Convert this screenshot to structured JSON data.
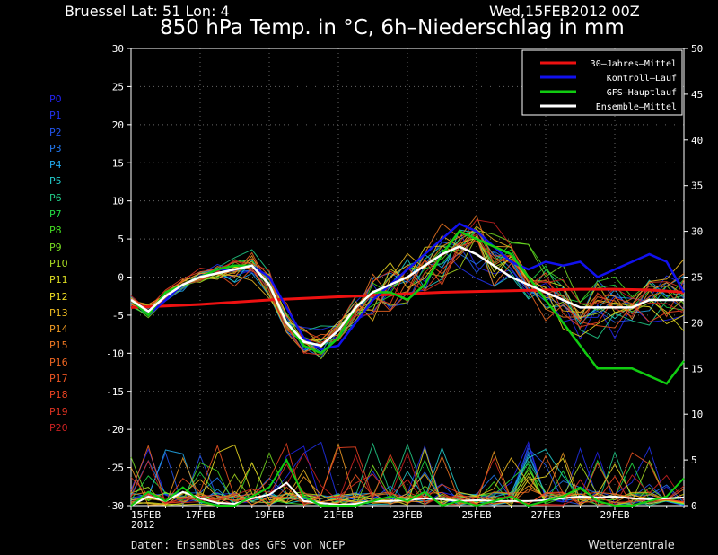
{
  "header": {
    "station": "Bruessel   Lat: 51 Lon: 4",
    "datetime": "Wed,15FEB2012 00Z",
    "title": "850 hPa Temp. in °C, 6h–Niederschlag in mm"
  },
  "footer": {
    "source": "Daten: Ensembles des GFS von NCEP",
    "brand": "Wetterzentrale"
  },
  "members": [
    {
      "label": "P0",
      "color": "#2222ee"
    },
    {
      "label": "P1",
      "color": "#2233ee"
    },
    {
      "label": "P2",
      "color": "#2255ee"
    },
    {
      "label": "P3",
      "color": "#2277ee"
    },
    {
      "label": "P4",
      "color": "#22aaee"
    },
    {
      "label": "P5",
      "color": "#22cccc"
    },
    {
      "label": "P6",
      "color": "#22cc88"
    },
    {
      "label": "P7",
      "color": "#22dd44"
    },
    {
      "label": "P8",
      "color": "#44dd22"
    },
    {
      "label": "P9",
      "color": "#77dd22"
    },
    {
      "label": "P10",
      "color": "#aadd22"
    },
    {
      "label": "P11",
      "color": "#dddd22"
    },
    {
      "label": "P12",
      "color": "#eedd22"
    },
    {
      "label": "P13",
      "color": "#eebb22"
    },
    {
      "label": "P14",
      "color": "#ee9922"
    },
    {
      "label": "P15",
      "color": "#ee7722"
    },
    {
      "label": "P16",
      "color": "#ee6622"
    },
    {
      "label": "P17",
      "color": "#ee5522"
    },
    {
      "label": "P18",
      "color": "#ee4422"
    },
    {
      "label": "P19",
      "color": "#dd3322"
    },
    {
      "label": "P20",
      "color": "#cc2222"
    }
  ],
  "chart_data": {
    "type": "line",
    "x_ticks": [
      "15FEB\n2012",
      "17FEB",
      "19FEB",
      "21FEB",
      "23FEB",
      "25FEB",
      "27FEB",
      "29FEB"
    ],
    "x_start": "2012-02-15",
    "x_end": "2012-03-02",
    "yleft_lim": [
      -30,
      30
    ],
    "yleft_ticks": [
      30,
      25,
      20,
      15,
      10,
      5,
      0,
      -5,
      -10,
      -15,
      -20,
      -25,
      -30
    ],
    "yright_lim": [
      0,
      50
    ],
    "yright_ticks": [
      50,
      45,
      40,
      35,
      30,
      25,
      20,
      15,
      10,
      5,
      0
    ],
    "grid": true,
    "legend_position": "top-right",
    "legend": [
      {
        "label": "30–Jahres–Mittel",
        "color": "#ee1111"
      },
      {
        "label": "Kontroll–Lauf",
        "color": "#1111ee"
      },
      {
        "label": "GFS–Hauptlauf",
        "color": "#11cc11"
      },
      {
        "label": "Ensemble–Mittel",
        "color": "#ffffff"
      }
    ],
    "temp_series": [
      {
        "name": "30–Jahres–Mittel",
        "color": "#ee1111",
        "width": 3,
        "x": [
          0,
          1,
          2,
          3,
          4,
          5,
          6,
          7,
          8,
          9,
          10,
          11,
          12,
          13,
          14,
          15,
          16
        ],
        "y": [
          -4.0,
          -3.8,
          -3.6,
          -3.3,
          -3.0,
          -2.8,
          -2.6,
          -2.4,
          -2.2,
          -2.0,
          -1.9,
          -1.8,
          -1.7,
          -1.6,
          -1.6,
          -1.7,
          -2.0
        ]
      },
      {
        "name": "Kontroll–Lauf",
        "color": "#1111ee",
        "width": 2.5,
        "x": [
          0,
          0.5,
          1,
          1.5,
          2,
          2.5,
          3,
          3.5,
          4,
          4.5,
          5,
          5.5,
          6,
          6.5,
          7,
          7.5,
          8,
          8.5,
          9,
          9.5,
          10,
          10.5,
          11,
          11.5,
          12,
          12.5,
          13,
          13.5,
          14,
          14.5,
          15,
          15.5,
          16
        ],
        "y": [
          -3,
          -5,
          -3,
          -1,
          0,
          1,
          1,
          1.5,
          0,
          -4,
          -8,
          -9.5,
          -9,
          -6,
          -3,
          -1,
          1,
          3,
          5,
          7,
          6,
          4,
          2,
          1,
          2,
          1.5,
          2,
          0,
          1,
          2,
          3,
          2,
          -2
        ]
      },
      {
        "name": "GFS–Hauptlauf",
        "color": "#11cc11",
        "width": 2.5,
        "x": [
          0,
          0.5,
          1,
          1.5,
          2,
          2.5,
          3,
          3.5,
          4,
          4.5,
          5,
          5.5,
          6,
          6.5,
          7,
          7.5,
          8,
          8.5,
          9,
          9.5,
          10,
          10.5,
          11,
          11.5,
          12,
          12.5,
          13,
          13.5,
          14,
          14.5,
          15,
          15.5,
          16
        ],
        "y": [
          -3,
          -5,
          -2,
          -1,
          0,
          1,
          1.5,
          1.5,
          -1,
          -6,
          -9,
          -10,
          -8,
          -4,
          -2,
          -2,
          -3,
          -1,
          3,
          6,
          5,
          4,
          3,
          0,
          -3,
          -6,
          -9,
          -12,
          -12,
          -12,
          -13,
          -14,
          -11
        ]
      },
      {
        "name": "Ensemble–Mittel",
        "color": "#ffffff",
        "width": 2.5,
        "x": [
          0,
          0.5,
          1,
          1.5,
          2,
          2.5,
          3,
          3.5,
          4,
          4.5,
          5,
          5.5,
          6,
          6.5,
          7,
          7.5,
          8,
          8.5,
          9,
          9.5,
          10,
          10.5,
          11,
          11.5,
          12,
          12.5,
          13,
          13.5,
          14,
          14.5,
          15,
          15.5,
          16
        ],
        "y": [
          -3,
          -4.5,
          -2.5,
          -1,
          0,
          0.5,
          1,
          1.5,
          -1,
          -6,
          -8.5,
          -9,
          -7,
          -4,
          -2,
          -1,
          0,
          1.5,
          3,
          4,
          3,
          1.5,
          0,
          -1,
          -2,
          -3,
          -4,
          -4,
          -4,
          -4,
          -3,
          -3,
          -3
        ]
      }
    ],
    "precip_series": [
      {
        "name": "Ensemble–Mittel",
        "color": "#ffffff",
        "width": 2,
        "x": [
          0,
          0.5,
          1,
          1.5,
          2,
          2.5,
          3,
          3.5,
          4,
          4.5,
          5,
          5.5,
          6,
          6.5,
          7,
          7.5,
          8,
          8.5,
          9,
          9.5,
          10,
          10.5,
          11,
          11.5,
          12,
          12.5,
          13,
          13.5,
          14,
          14.5,
          15,
          15.5,
          16
        ],
        "y": [
          0,
          1,
          0.5,
          1.5,
          0.8,
          0.3,
          0.2,
          0.8,
          1.2,
          2.5,
          0.5,
          0.3,
          0.1,
          0.2,
          0.5,
          0.5,
          0.6,
          0.8,
          0.7,
          0.5,
          0.6,
          0.5,
          0.5,
          0.5,
          0.6,
          0.8,
          1,
          0.9,
          1,
          0.8,
          0.7,
          0.8,
          0.9
        ]
      },
      {
        "name": "GFS–Hauptlauf",
        "color": "#11cc11",
        "width": 2,
        "x": [
          0,
          0.5,
          1,
          1.5,
          2,
          2.5,
          3,
          3.5,
          4,
          4.5,
          5,
          5.5,
          6,
          6.5,
          7,
          7.5,
          8,
          8.5,
          9,
          9.5,
          10,
          10.5,
          11,
          11.5,
          12,
          12.5,
          13,
          13.5,
          14,
          14.5,
          15,
          15.5,
          16
        ],
        "y": [
          0,
          1.5,
          0.5,
          2,
          0.5,
          0,
          0,
          1,
          2,
          5,
          1,
          0,
          0,
          0,
          0.5,
          1,
          0.5,
          1.5,
          0,
          0.5,
          0,
          0.5,
          1,
          0,
          0.5,
          1,
          2,
          0.5,
          0,
          0,
          0.5,
          1,
          3
        ]
      }
    ]
  }
}
